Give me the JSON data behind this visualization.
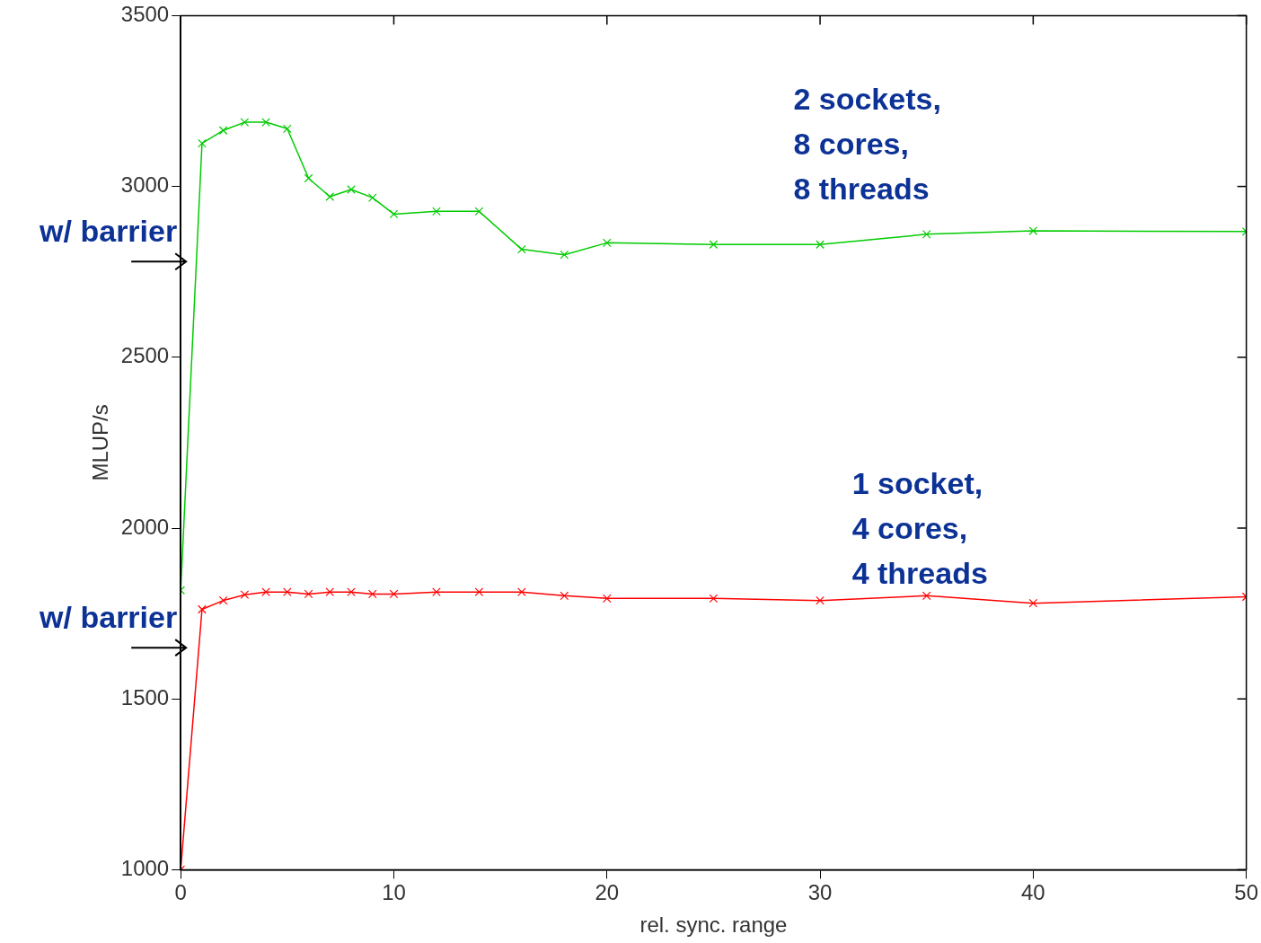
{
  "chart_data": {
    "type": "line",
    "xlabel": "rel. sync. range",
    "ylabel": "MLUP/s",
    "xlim": [
      0,
      50
    ],
    "xticks": [
      0,
      10,
      20,
      30,
      40,
      50
    ],
    "ylim": [
      1000,
      3500
    ],
    "yticks": [
      1000,
      1500,
      2000,
      2500,
      3000,
      3500
    ],
    "grid": false,
    "legend": false,
    "marker": "cross",
    "line_style": "solid",
    "series": [
      {
        "name": "2 sockets, 8 cores, 8 threads",
        "color": "#00cc00",
        "x": [
          0,
          1,
          2,
          3,
          4,
          5,
          6,
          7,
          8,
          9,
          10,
          12,
          14,
          16,
          18,
          20,
          25,
          30,
          35,
          40,
          50
        ],
        "values": [
          1818,
          3126,
          3164,
          3188,
          3188,
          3169,
          3024,
          2970,
          2991,
          2967,
          2919,
          2927,
          2927,
          2816,
          2800,
          2835,
          2830,
          2830,
          2860,
          2870,
          2868
        ]
      },
      {
        "name": "1 socket, 4 cores, 4 threads",
        "color": "#ff0000",
        "x": [
          0,
          1,
          2,
          3,
          4,
          5,
          6,
          7,
          8,
          9,
          10,
          12,
          14,
          16,
          18,
          20,
          25,
          30,
          35,
          40,
          50
        ],
        "values": [
          1000,
          1762,
          1788,
          1805,
          1813,
          1813,
          1807,
          1813,
          1813,
          1807,
          1807,
          1813,
          1813,
          1813,
          1802,
          1794,
          1794,
          1788,
          1802,
          1780,
          1799
        ]
      }
    ],
    "annotations": [
      {
        "text": "w/ barrier",
        "x": 0,
        "y": 2780
      },
      {
        "text": "w/ barrier",
        "x": 0,
        "y": 1650
      }
    ]
  }
}
